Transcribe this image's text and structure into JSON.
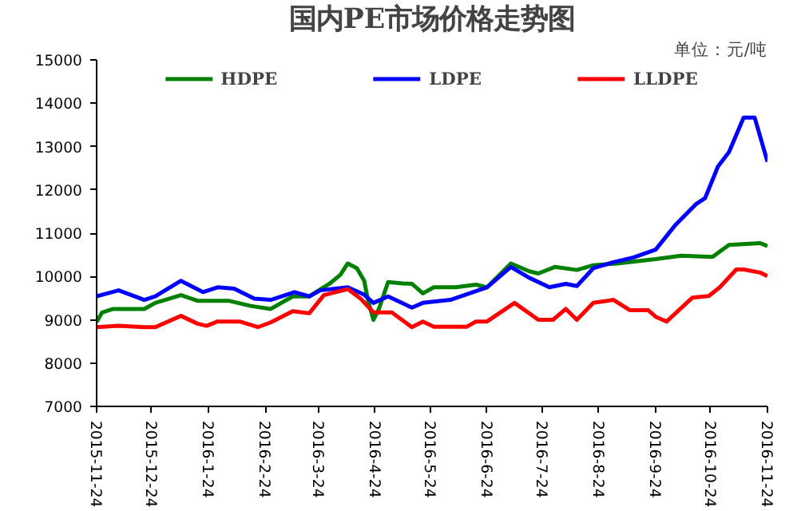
{
  "chart_data": {
    "type": "line",
    "title": "国内PE市场价格走势图",
    "annotations": [
      "单位：元/吨"
    ],
    "ylim": [
      7000,
      15000
    ],
    "yticks": [
      7000,
      8000,
      9000,
      10000,
      11000,
      12000,
      13000,
      14000,
      15000
    ],
    "xlim": [
      "2015-11-24",
      "2016-11-24"
    ],
    "xticks": [
      {
        "value": "2015-11-24",
        "label": "2015-11-24"
      },
      {
        "value": "2015-12-24",
        "label": "2015-12-24"
      },
      {
        "value": "2016-01-24",
        "label": "2016-1-24"
      },
      {
        "value": "2016-02-24",
        "label": "2016-2-24"
      },
      {
        "value": "2016-03-24",
        "label": "2016-3-24"
      },
      {
        "value": "2016-04-24",
        "label": "2016-4-24"
      },
      {
        "value": "2016-05-24",
        "label": "2016-5-24"
      },
      {
        "value": "2016-06-24",
        "label": "2016-6-24"
      },
      {
        "value": "2016-07-24",
        "label": "2016-7-24"
      },
      {
        "value": "2016-08-24",
        "label": "2016-8-24"
      },
      {
        "value": "2016-09-24",
        "label": "2016-9-24"
      },
      {
        "value": "2016-10-24",
        "label": "2016-10-24"
      },
      {
        "value": "2016-11-24",
        "label": "2016-11-24"
      }
    ],
    "grid": false,
    "legend": "top",
    "marker": "none",
    "line_style": "solid",
    "series": [
      {
        "name": "HDPE",
        "color": "#008000",
        "x": [
          "2015-11-24",
          "2015-11-27",
          "2015-12-03",
          "2015-12-20",
          "2015-12-26",
          "2016-01-09",
          "2016-01-18",
          "2016-02-04",
          "2016-02-16",
          "2016-02-27",
          "2016-03-10",
          "2016-03-19",
          "2016-03-30",
          "2016-04-05",
          "2016-04-09",
          "2016-04-14",
          "2016-04-18",
          "2016-04-20",
          "2016-04-23",
          "2016-04-26",
          "2016-05-01",
          "2016-05-09",
          "2016-05-14",
          "2016-05-20",
          "2016-05-26",
          "2016-06-07",
          "2016-06-18",
          "2016-06-24",
          "2016-07-07",
          "2016-07-17",
          "2016-07-22",
          "2016-07-31",
          "2016-08-12",
          "2016-08-21",
          "2016-09-03",
          "2016-09-24",
          "2016-10-08",
          "2016-10-25",
          "2016-11-03",
          "2016-11-20",
          "2016-11-24"
        ],
        "values": [
          8950,
          9170,
          9250,
          9250,
          9390,
          9570,
          9440,
          9440,
          9320,
          9250,
          9540,
          9540,
          9830,
          10040,
          10300,
          10190,
          9900,
          9460,
          9000,
          9250,
          9870,
          9840,
          9830,
          9610,
          9750,
          9750,
          9810,
          9750,
          10300,
          10120,
          10070,
          10220,
          10150,
          10260,
          10300,
          10400,
          10480,
          10450,
          10730,
          10770,
          10700
        ]
      },
      {
        "name": "LDPE",
        "color": "#0000ff",
        "x": [
          "2015-11-24",
          "2015-12-06",
          "2015-12-20",
          "2015-12-26",
          "2016-01-09",
          "2016-01-21",
          "2016-01-29",
          "2016-02-07",
          "2016-02-18",
          "2016-02-27",
          "2016-03-11",
          "2016-03-19",
          "2016-03-25",
          "2016-04-09",
          "2016-04-18",
          "2016-04-23",
          "2016-05-01",
          "2016-05-14",
          "2016-05-20",
          "2016-06-04",
          "2016-06-24",
          "2016-07-07",
          "2016-07-17",
          "2016-07-28",
          "2016-08-06",
          "2016-08-12",
          "2016-08-21",
          "2016-09-01",
          "2016-09-12",
          "2016-09-24",
          "2016-10-05",
          "2016-10-16",
          "2016-10-21",
          "2016-10-28",
          "2016-11-03",
          "2016-11-11",
          "2016-11-17",
          "2016-11-24"
        ],
        "values": [
          9540,
          9680,
          9460,
          9540,
          9900,
          9640,
          9750,
          9720,
          9490,
          9460,
          9640,
          9540,
          9680,
          9750,
          9580,
          9390,
          9540,
          9280,
          9390,
          9460,
          9750,
          10220,
          9970,
          9750,
          9830,
          9780,
          10190,
          10330,
          10440,
          10620,
          11200,
          11670,
          11810,
          12540,
          12870,
          13670,
          13670,
          12650
        ]
      },
      {
        "name": "LLDPE",
        "color": "#ff0000",
        "x": [
          "2015-11-24",
          "2015-12-06",
          "2015-12-20",
          "2015-12-26",
          "2016-01-09",
          "2016-01-18",
          "2016-01-23",
          "2016-01-29",
          "2016-02-10",
          "2016-02-20",
          "2016-02-27",
          "2016-03-10",
          "2016-03-19",
          "2016-03-27",
          "2016-04-09",
          "2016-04-16",
          "2016-04-23",
          "2016-05-03",
          "2016-05-14",
          "2016-05-20",
          "2016-05-26",
          "2016-06-13",
          "2016-06-18",
          "2016-06-24",
          "2016-07-09",
          "2016-07-22",
          "2016-07-30",
          "2016-08-06",
          "2016-08-12",
          "2016-08-21",
          "2016-09-01",
          "2016-09-10",
          "2016-09-20",
          "2016-09-24",
          "2016-09-30",
          "2016-10-14",
          "2016-10-23",
          "2016-10-29",
          "2016-11-07",
          "2016-11-11",
          "2016-11-20",
          "2016-11-24"
        ],
        "values": [
          8830,
          8860,
          8830,
          8830,
          9090,
          8910,
          8860,
          8960,
          8960,
          8830,
          8940,
          9200,
          9150,
          9570,
          9710,
          9490,
          9170,
          9170,
          8830,
          8960,
          8840,
          8840,
          8960,
          8960,
          9390,
          9000,
          9000,
          9250,
          9000,
          9390,
          9460,
          9220,
          9220,
          9070,
          8960,
          9510,
          9550,
          9750,
          10160,
          10160,
          10090,
          10010
        ]
      }
    ]
  }
}
